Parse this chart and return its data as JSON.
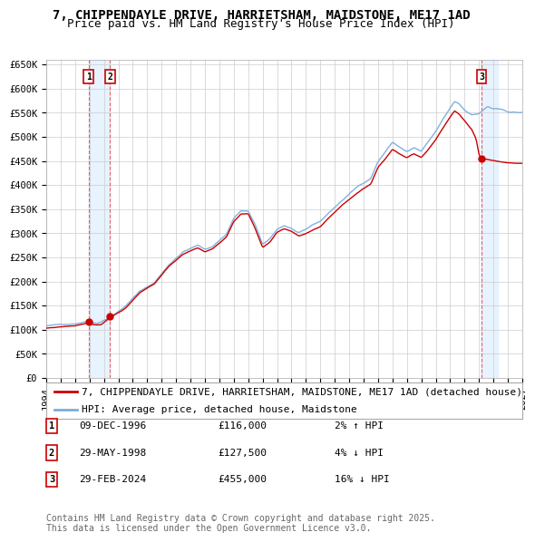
{
  "title": "7, CHIPPENDAYLE DRIVE, HARRIETSHAM, MAIDSTONE, ME17 1AD",
  "subtitle": "Price paid vs. HM Land Registry's House Price Index (HPI)",
  "ylim": [
    0,
    660000
  ],
  "yticks": [
    0,
    50000,
    100000,
    150000,
    200000,
    250000,
    300000,
    350000,
    400000,
    450000,
    500000,
    550000,
    600000,
    650000
  ],
  "ytick_labels": [
    "£0",
    "£50K",
    "£100K",
    "£150K",
    "£200K",
    "£250K",
    "£300K",
    "£350K",
    "£400K",
    "£450K",
    "£500K",
    "£550K",
    "£600K",
    "£650K"
  ],
  "hpi_color": "#7aaddc",
  "price_color": "#cc0000",
  "bg_color": "#ffffff",
  "grid_color": "#cccccc",
  "legend_line1": "7, CHIPPENDAYLE DRIVE, HARRIETSHAM, MAIDSTONE, ME17 1AD (detached house)",
  "legend_line2": "HPI: Average price, detached house, Maidstone",
  "table_rows": [
    [
      "1",
      "09-DEC-1996",
      "£116,000",
      "2% ↑ HPI"
    ],
    [
      "2",
      "29-MAY-1998",
      "£127,500",
      "4% ↓ HPI"
    ],
    [
      "3",
      "29-FEB-2024",
      "£455,000",
      "16% ↓ HPI"
    ]
  ],
  "footer": "Contains HM Land Registry data © Crown copyright and database right 2025.\nThis data is licensed under the Open Government Licence v3.0.",
  "title_fontsize": 10,
  "subtitle_fontsize": 9,
  "tick_fontsize": 7.5,
  "legend_fontsize": 8,
  "table_fontsize": 8,
  "footer_fontsize": 7,
  "vline_color": "#dd6666",
  "shade_color": "#ddeeff",
  "sale_years": [
    1996.94,
    1998.42,
    2024.17
  ],
  "sale_prices": [
    116000,
    127500,
    455000
  ],
  "sale_labels": [
    "1",
    "2",
    "3"
  ],
  "xlim": [
    1994.0,
    2027.0
  ],
  "xtick_start": 1994,
  "xtick_end": 2027
}
